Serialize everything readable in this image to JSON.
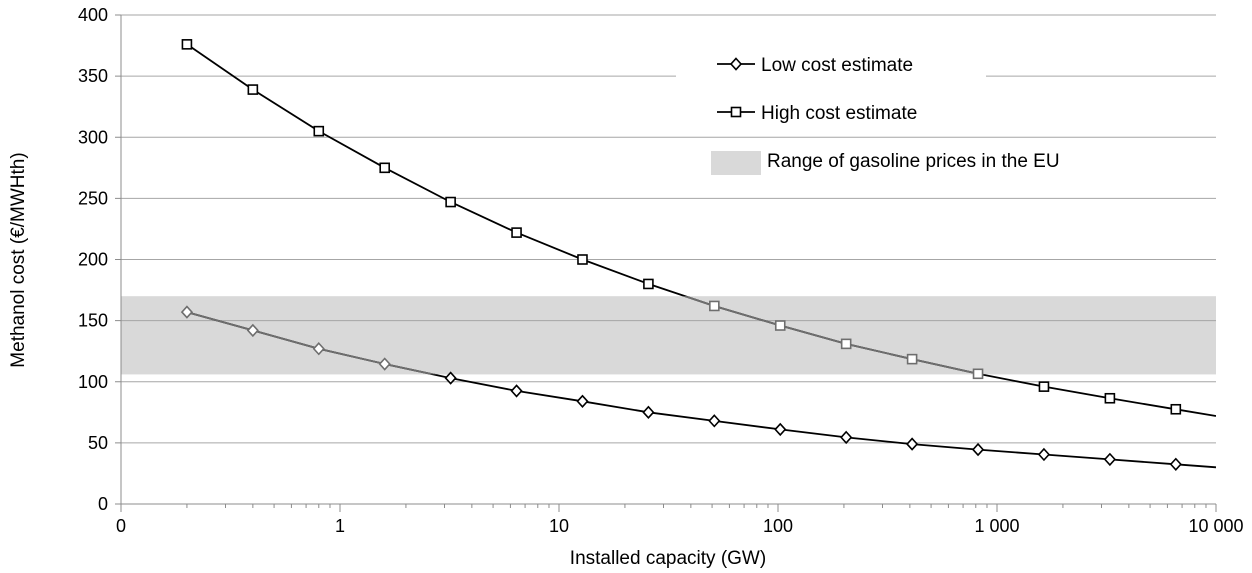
{
  "chart_data": {
    "type": "line",
    "title": "",
    "xlabel": "Installed capacity (GW)",
    "ylabel": "Methanol cost (€/MWHth)",
    "x_scale": "log",
    "xlim": [
      0.1,
      10000
    ],
    "ylim": [
      0,
      400
    ],
    "x_ticks": [
      0.1,
      1,
      10,
      100,
      1000,
      10000
    ],
    "x_tick_labels": [
      "0",
      "1",
      "10",
      "100",
      "1 000",
      "10 000"
    ],
    "y_ticks": [
      0,
      50,
      100,
      150,
      200,
      250,
      300,
      350,
      400
    ],
    "y_tick_labels": [
      "0",
      "50",
      "100",
      "150",
      "200",
      "250",
      "300",
      "350",
      "400"
    ],
    "grid": "horizontal",
    "x": [
      0.2,
      0.4,
      0.8,
      1.6,
      3.2,
      6.4,
      12.8,
      25.6,
      51.2,
      102.4,
      204.8,
      409.6,
      819.2,
      1638.4,
      3276.8,
      6553.6
    ],
    "series": [
      {
        "name": "Low cost estimate",
        "marker": "diamond",
        "values": [
          157,
          142,
          127,
          114.5,
          103,
          92.5,
          84,
          75,
          68,
          61,
          54.5,
          49,
          44.5,
          40.5,
          36.5,
          32.5
        ],
        "line_end": {
          "x": 10000,
          "y": 30
        }
      },
      {
        "name": "High cost estimate",
        "marker": "square",
        "values": [
          376,
          339,
          305,
          275,
          247,
          222,
          200,
          180,
          162,
          146,
          131,
          118.5,
          106.5,
          96,
          86.5,
          77.5
        ],
        "line_end": {
          "x": 10000,
          "y": 72
        }
      }
    ],
    "band": {
      "name": "Range of gasoline prices in the EU",
      "y_min": 106,
      "y_max": 170
    },
    "legend_position": "top-right",
    "colors": {
      "line": "#000000",
      "line_in_band": "#6e6e6e",
      "band": "#d9d9d9",
      "grid": "#a6a6a6",
      "marker_fill": "#ffffff"
    }
  }
}
